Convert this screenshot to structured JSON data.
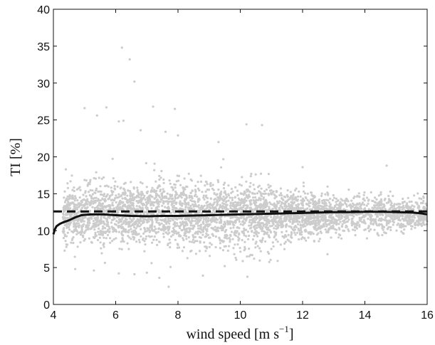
{
  "chart_data": {
    "type": "scatter",
    "xlabel_text": "wind speed [m s",
    "xlabel_exp": "−1",
    "xlabel_close": "]",
    "ylabel": "TI [%]",
    "xlim": [
      4,
      16
    ],
    "ylim": [
      0,
      40
    ],
    "xticks": [
      "4",
      "6",
      "8",
      "10",
      "12",
      "14",
      "16"
    ],
    "yticks": [
      "0",
      "5",
      "10",
      "15",
      "20",
      "25",
      "30",
      "35",
      "40"
    ],
    "grid": false,
    "scatter_color": "#cccccc",
    "line_color": "#111111",
    "reference_line": {
      "y": 12.6,
      "style": "dashed"
    },
    "mean_curve": [
      [
        4.0,
        9.5
      ],
      [
        4.05,
        10.2
      ],
      [
        4.1,
        10.6
      ],
      [
        4.2,
        10.9
      ],
      [
        4.3,
        11.1
      ],
      [
        4.5,
        11.4
      ],
      [
        4.7,
        11.8
      ],
      [
        4.9,
        12.1
      ],
      [
        5.2,
        12.2
      ],
      [
        5.6,
        12.2
      ],
      [
        6.0,
        12.1
      ],
      [
        6.5,
        12.0
      ],
      [
        7.0,
        11.95
      ],
      [
        7.5,
        12.0
      ],
      [
        8.0,
        12.0
      ],
      [
        8.5,
        12.05
      ],
      [
        9.0,
        12.1
      ],
      [
        9.5,
        12.15
      ],
      [
        10.0,
        12.2
      ],
      [
        10.5,
        12.25
      ],
      [
        11.0,
        12.3
      ],
      [
        11.5,
        12.35
      ],
      [
        12.0,
        12.4
      ],
      [
        12.5,
        12.45
      ],
      [
        13.0,
        12.5
      ],
      [
        13.5,
        12.5
      ],
      [
        14.0,
        12.55
      ],
      [
        14.5,
        12.55
      ],
      [
        15.0,
        12.5
      ],
      [
        15.5,
        12.45
      ],
      [
        15.8,
        12.35
      ],
      [
        16.0,
        12.2
      ]
    ],
    "outliers": [
      [
        6.2,
        34.8
      ],
      [
        6.45,
        33.2
      ],
      [
        6.6,
        30.2
      ],
      [
        5.0,
        26.6
      ],
      [
        5.7,
        26.7
      ],
      [
        7.2,
        26.8
      ],
      [
        7.9,
        26.5
      ],
      [
        5.4,
        25.6
      ],
      [
        6.1,
        24.8
      ],
      [
        6.25,
        24.9
      ],
      [
        10.2,
        24.4
      ],
      [
        10.7,
        24.3
      ],
      [
        6.8,
        23.6
      ],
      [
        7.6,
        23.4
      ],
      [
        8.0,
        22.9
      ],
      [
        9.3,
        22.0
      ],
      [
        14.7,
        18.8
      ],
      [
        4.4,
        18.3
      ],
      [
        12.0,
        18.6
      ],
      [
        4.7,
        4.8
      ],
      [
        6.1,
        4.2
      ],
      [
        7.0,
        4.3
      ],
      [
        7.7,
        2.4
      ],
      [
        8.8,
        3.9
      ],
      [
        5.3,
        4.6
      ],
      [
        6.6,
        4.1
      ],
      [
        9.5,
        5.2
      ],
      [
        11.2,
        5.9
      ],
      [
        12.8,
        6.8
      ],
      [
        7.4,
        3.6
      ]
    ]
  }
}
